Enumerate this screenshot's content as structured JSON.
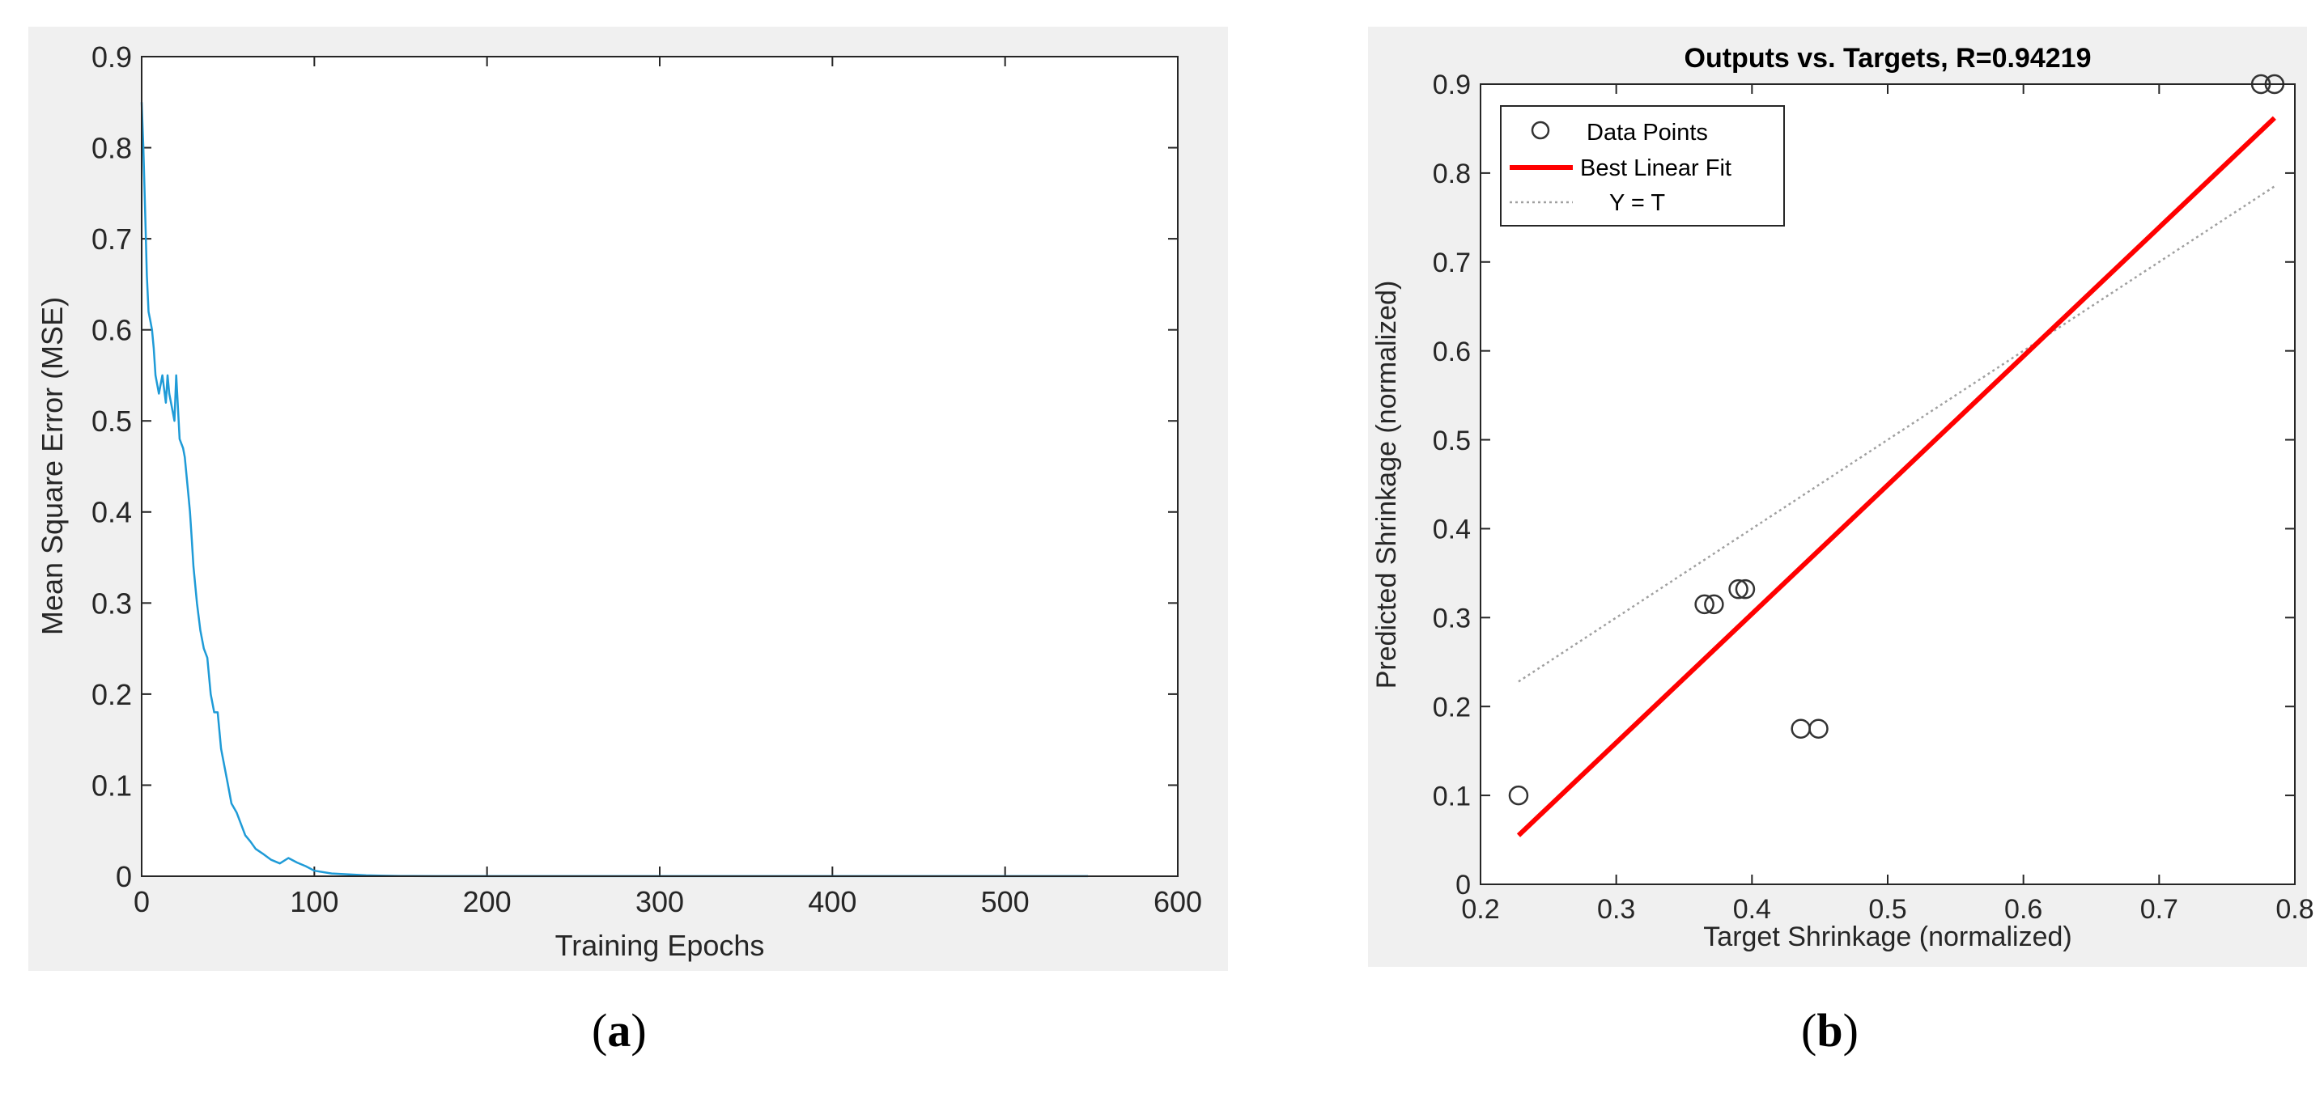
{
  "captions": {
    "a": {
      "open": "(",
      "letter": "a",
      "close": ")"
    },
    "b": {
      "open": "(",
      "letter": "b",
      "close": ")"
    }
  },
  "chart_data": [
    {
      "type": "line",
      "title": "",
      "xlabel": "Training Epochs",
      "ylabel": "Mean Square Error (MSE)",
      "xlim": [
        0,
        600
      ],
      "ylim": [
        0,
        0.9
      ],
      "xticks": [
        0,
        100,
        200,
        300,
        400,
        500,
        600
      ],
      "yticks": [
        0,
        0.1,
        0.2,
        0.3,
        0.4,
        0.5,
        0.6,
        0.7,
        0.8,
        0.9
      ],
      "grid": false,
      "colors": {
        "line": "#1f9bd7"
      },
      "x": [
        0,
        1,
        2,
        3,
        4,
        5,
        6,
        7,
        8,
        9,
        10,
        12,
        14,
        15,
        16,
        18,
        19,
        20,
        22,
        24,
        25,
        27,
        28,
        29,
        30,
        32,
        34,
        36,
        38,
        40,
        42,
        44,
        45,
        46,
        48,
        50,
        52,
        55,
        58,
        60,
        63,
        66,
        70,
        75,
        80,
        85,
        90,
        95,
        100,
        110,
        120,
        130,
        140,
        150,
        170,
        200,
        250,
        300,
        350,
        400,
        450,
        500,
        548
      ],
      "y": [
        0.85,
        0.8,
        0.73,
        0.66,
        0.62,
        0.61,
        0.6,
        0.58,
        0.55,
        0.54,
        0.53,
        0.55,
        0.52,
        0.55,
        0.53,
        0.51,
        0.5,
        0.55,
        0.48,
        0.47,
        0.46,
        0.42,
        0.4,
        0.37,
        0.34,
        0.3,
        0.27,
        0.25,
        0.24,
        0.2,
        0.18,
        0.18,
        0.16,
        0.14,
        0.12,
        0.1,
        0.08,
        0.07,
        0.055,
        0.045,
        0.038,
        0.03,
        0.025,
        0.018,
        0.014,
        0.02,
        0.015,
        0.011,
        0.006,
        0.003,
        0.002,
        0.001,
        0.0005,
        0.0003,
        0.0001,
        0.0001,
        0.0001,
        0.0001,
        0.0001,
        0.0001,
        0.0001,
        0.0001,
        0.0001
      ]
    },
    {
      "type": "scatter",
      "title": "Outputs vs. Targets, R=0.94219",
      "xlabel": "Target Shrinkage (normalized)",
      "ylabel": "Predicted Shrinkage (normalized)",
      "xlim": [
        0.2,
        0.8
      ],
      "ylim": [
        0,
        0.9
      ],
      "xticks": [
        0.2,
        0.3,
        0.4,
        0.5,
        0.6,
        0.7,
        0.8
      ],
      "yticks": [
        0,
        0.1,
        0.2,
        0.3,
        0.4,
        0.5,
        0.6,
        0.7,
        0.8,
        0.9
      ],
      "grid": false,
      "legend": {
        "placement": "top-left",
        "entries": [
          "Data Points",
          "Best Linear Fit",
          "Y = T"
        ]
      },
      "points": {
        "x": [
          0.228,
          0.365,
          0.372,
          0.39,
          0.395,
          0.436,
          0.449,
          0.775,
          0.785
        ],
        "y": [
          0.1,
          0.315,
          0.315,
          0.332,
          0.332,
          0.175,
          0.175,
          0.9,
          0.9
        ]
      },
      "best_fit": {
        "x": [
          0.228,
          0.785
        ],
        "y": [
          0.055,
          0.862
        ]
      },
      "identity_line": {
        "x": [
          0.228,
          0.785
        ],
        "y": [
          0.228,
          0.785
        ]
      },
      "colors": {
        "points": "#333333",
        "best_fit": "#ff0000",
        "identity_line": "#a0a0a0"
      }
    }
  ]
}
